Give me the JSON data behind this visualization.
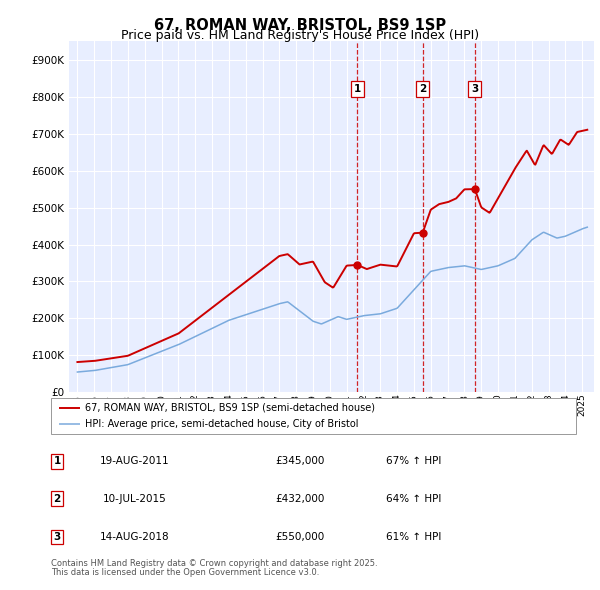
{
  "title": "67, ROMAN WAY, BRISTOL, BS9 1SP",
  "subtitle": "Price paid vs. HM Land Registry's House Price Index (HPI)",
  "legend_line1": "67, ROMAN WAY, BRISTOL, BS9 1SP (semi-detached house)",
  "legend_line2": "HPI: Average price, semi-detached house, City of Bristol",
  "footer1": "Contains HM Land Registry data © Crown copyright and database right 2025.",
  "footer2": "This data is licensed under the Open Government Licence v3.0.",
  "sales": [
    {
      "label": "1",
      "date_str": "19-AUG-2011",
      "date_x": 2011.63,
      "price": 345000,
      "pct": "67%",
      "vline_x": 2011.63
    },
    {
      "label": "2",
      "date_str": "10-JUL-2015",
      "date_x": 2015.52,
      "price": 432000,
      "pct": "64%",
      "vline_x": 2015.52
    },
    {
      "label": "3",
      "date_str": "14-AUG-2018",
      "date_x": 2018.62,
      "price": 550000,
      "pct": "61%",
      "vline_x": 2018.62
    }
  ],
  "ylim": [
    0,
    950000
  ],
  "xlim_start": 1994.5,
  "xlim_end": 2025.7,
  "background_color": "#e8eeff",
  "red_color": "#cc0000",
  "blue_color": "#7aaadd",
  "grid_color": "#ffffff",
  "title_fontsize": 10.5,
  "subtitle_fontsize": 9
}
